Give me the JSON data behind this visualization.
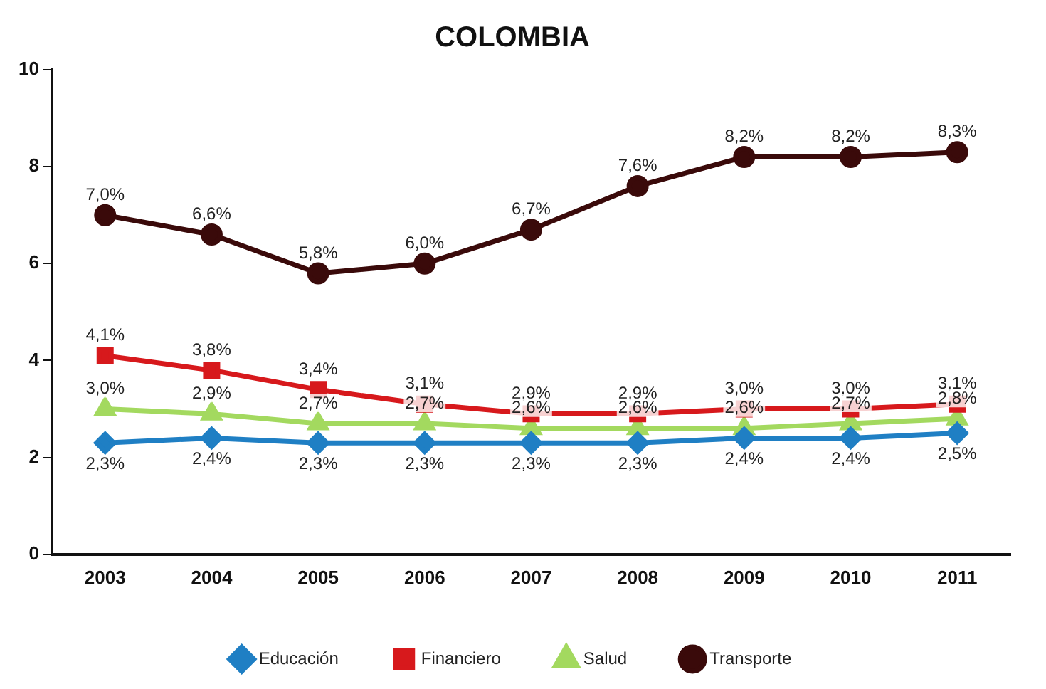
{
  "chart_data": {
    "type": "line",
    "title": "COLOMBIA",
    "categories": [
      "2003",
      "2004",
      "2005",
      "2006",
      "2007",
      "2008",
      "2009",
      "2010",
      "2011"
    ],
    "ylim": [
      0,
      10
    ],
    "yticks": [
      0,
      2,
      4,
      6,
      8,
      10
    ],
    "grid": false,
    "legend": "bottom",
    "line_style": "solid",
    "series": [
      {
        "name": "Educación",
        "color": "#1f7fc4",
        "marker": "diamond",
        "values": [
          2.3,
          2.4,
          2.3,
          2.3,
          2.3,
          2.3,
          2.4,
          2.4,
          2.5
        ],
        "value_labels": [
          "2,3%",
          "2,4%",
          "2,3%",
          "2,3%",
          "2,3%",
          "2,3%",
          "2,4%",
          "2,4%",
          "2,5%"
        ]
      },
      {
        "name": "Financiero",
        "color": "#d7191c",
        "marker": "square",
        "values": [
          4.1,
          3.8,
          3.4,
          3.1,
          2.9,
          2.9,
          3.0,
          3.0,
          3.1
        ],
        "value_labels": [
          "4,1%",
          "3,8%",
          "3,4%",
          "3,1%",
          "2,9%",
          "2,9%",
          "3,0%",
          "3,0%",
          "3,1%"
        ]
      },
      {
        "name": "Salud",
        "color": "#a3d95f",
        "marker": "triangle",
        "values": [
          3.0,
          2.9,
          2.7,
          2.7,
          2.6,
          2.6,
          2.6,
          2.7,
          2.8
        ],
        "value_labels": [
          "3,0%",
          "2,9%",
          "2,7%",
          "2,7%",
          "2,6%",
          "2,6%",
          "2,6%",
          "2,7%",
          "2,8%"
        ]
      },
      {
        "name": "Transporte",
        "color": "#3a0a0a",
        "marker": "circle",
        "values": [
          7.0,
          6.6,
          5.8,
          6.0,
          6.7,
          7.6,
          8.2,
          8.2,
          8.3
        ],
        "value_labels": [
          "7,0%",
          "6,6%",
          "5,8%",
          "6,0%",
          "6,7%",
          "7,6%",
          "8,2%",
          "8,2%",
          "8,3%"
        ]
      }
    ]
  }
}
